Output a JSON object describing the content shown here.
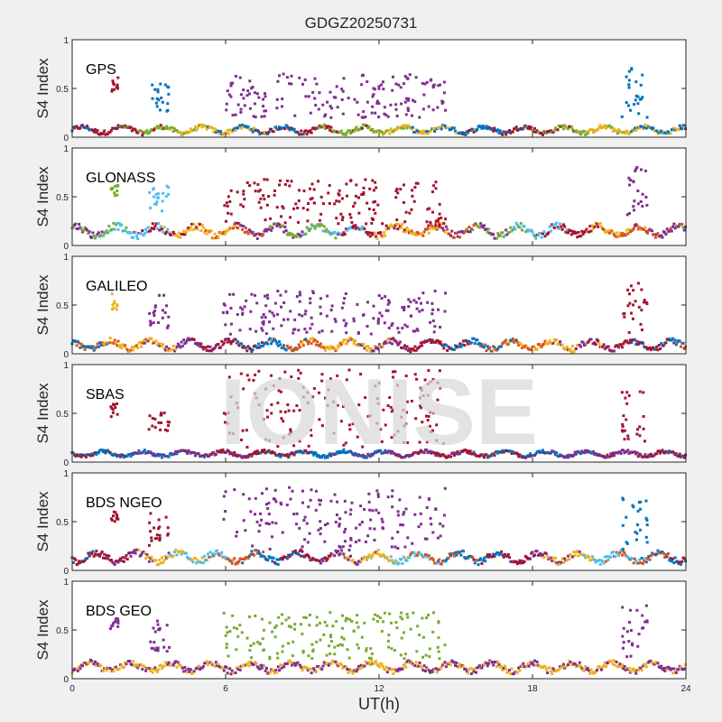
{
  "chart_data": {
    "type": "scatter",
    "title": "GDGZ20250731",
    "xlabel": "UT(h)",
    "ylabel": "S4 Index",
    "xlim": [
      0,
      24
    ],
    "ylim": [
      0,
      1
    ],
    "xticks": [
      0,
      6,
      12,
      18,
      24
    ],
    "xtick_labels": [
      "0",
      "6",
      "12",
      "18",
      "24"
    ],
    "yticks": [
      0,
      0.5,
      1
    ],
    "ytick_labels": [
      "0",
      "0.5",
      "1"
    ],
    "grid": false,
    "legend": "none",
    "watermark": "IONISE",
    "data_note": "Individual points are not transcribed; the image provides no readable values. Panel descriptions below are qualitative, with approximate UT-hour windows and S4 ranges estimated by eye.",
    "colors": [
      "#0072bd",
      "#d95319",
      "#edb120",
      "#7e2f8e",
      "#77ac30",
      "#4dbeee",
      "#a2142f"
    ],
    "panels": [
      {
        "label": "GPS",
        "background_approx": {
          "s4_range": [
            0.03,
            0.12
          ],
          "dominant_colors": [
            "#0072bd",
            "#a2142f",
            "#77ac30",
            "#edb120"
          ]
        },
        "activity_approx": [
          {
            "ut_range": [
              1.5,
              1.8
            ],
            "s4_range": [
              0.45,
              0.62
            ],
            "color": "#a2142f"
          },
          {
            "ut_range": [
              3.0,
              3.8
            ],
            "s4_range": [
              0.25,
              0.58
            ],
            "color": "#0072bd"
          },
          {
            "ut_range": [
              5.9,
              14.6
            ],
            "s4_range": [
              0.2,
              0.65
            ],
            "color": "#7e2f8e"
          },
          {
            "ut_range": [
              21.5,
              22.5
            ],
            "s4_range": [
              0.2,
              0.75
            ],
            "color": "#0072bd"
          }
        ]
      },
      {
        "label": "GLONASS",
        "background_approx": {
          "s4_range": [
            0.08,
            0.22
          ],
          "dominant_colors": [
            "#7e2f8e",
            "#77ac30",
            "#4dbeee",
            "#a2142f",
            "#edb120",
            "#d95319"
          ]
        },
        "activity_approx": [
          {
            "ut_range": [
              1.5,
              1.8
            ],
            "s4_range": [
              0.5,
              0.62
            ],
            "color": "#77ac30"
          },
          {
            "ut_range": [
              3.0,
              3.8
            ],
            "s4_range": [
              0.35,
              0.62
            ],
            "color": "#4dbeee"
          },
          {
            "ut_range": [
              5.9,
              14.6
            ],
            "s4_range": [
              0.2,
              0.68
            ],
            "color": "#a2142f"
          },
          {
            "ut_range": [
              21.5,
              22.5
            ],
            "s4_range": [
              0.2,
              0.82
            ],
            "color": "#7e2f8e"
          }
        ]
      },
      {
        "label": "GALILEO",
        "background_approx": {
          "s4_range": [
            0.03,
            0.15
          ],
          "dominant_colors": [
            "#0072bd",
            "#d95319",
            "#edb120",
            "#7e2f8e",
            "#a2142f"
          ]
        },
        "activity_approx": [
          {
            "ut_range": [
              1.5,
              1.8
            ],
            "s4_range": [
              0.45,
              0.62
            ],
            "color": "#edb120"
          },
          {
            "ut_range": [
              3.0,
              3.8
            ],
            "s4_range": [
              0.25,
              0.6
            ],
            "color": "#7e2f8e"
          },
          {
            "ut_range": [
              5.9,
              14.6
            ],
            "s4_range": [
              0.2,
              0.65
            ],
            "color": "#7e2f8e"
          },
          {
            "ut_range": [
              21.5,
              22.5
            ],
            "s4_range": [
              0.2,
              0.75
            ],
            "color": "#a2142f"
          }
        ]
      },
      {
        "label": "SBAS",
        "background_approx": {
          "s4_range": [
            0.05,
            0.12
          ],
          "dominant_colors": [
            "#a2142f",
            "#0072bd",
            "#7e2f8e"
          ]
        },
        "activity_approx": [
          {
            "ut_range": [
              1.5,
              1.8
            ],
            "s4_range": [
              0.45,
              0.6
            ],
            "color": "#a2142f"
          },
          {
            "ut_range": [
              3.0,
              3.8
            ],
            "s4_range": [
              0.25,
              0.58
            ],
            "color": "#a2142f"
          },
          {
            "ut_range": [
              5.9,
              14.6
            ],
            "s4_range": [
              0.15,
              0.95
            ],
            "color": "#a2142f"
          },
          {
            "ut_range": [
              21.5,
              22.5
            ],
            "s4_range": [
              0.2,
              0.75
            ],
            "color": "#a2142f"
          }
        ]
      },
      {
        "label": "BDS NGEO",
        "background_approx": {
          "s4_range": [
            0.07,
            0.2
          ],
          "dominant_colors": [
            "#0072bd",
            "#a2142f",
            "#7e2f8e",
            "#edb120",
            "#4dbeee",
            "#d95319"
          ]
        },
        "activity_approx": [
          {
            "ut_range": [
              1.5,
              1.8
            ],
            "s4_range": [
              0.5,
              0.62
            ],
            "color": "#a2142f"
          },
          {
            "ut_range": [
              3.0,
              3.8
            ],
            "s4_range": [
              0.25,
              0.6
            ],
            "color": "#a2142f"
          },
          {
            "ut_range": [
              5.9,
              14.6
            ],
            "s4_range": [
              0.2,
              0.85
            ],
            "color": "#7e2f8e"
          },
          {
            "ut_range": [
              21.5,
              22.5
            ],
            "s4_range": [
              0.2,
              0.8
            ],
            "color": "#0072bd"
          }
        ]
      },
      {
        "label": "BDS GEO",
        "background_approx": {
          "s4_range": [
            0.06,
            0.18
          ],
          "dominant_colors": [
            "#7e2f8e",
            "#edb120"
          ]
        },
        "activity_approx": [
          {
            "ut_range": [
              1.5,
              1.8
            ],
            "s4_range": [
              0.5,
              0.62
            ],
            "color": "#7e2f8e"
          },
          {
            "ut_range": [
              3.0,
              3.8
            ],
            "s4_range": [
              0.25,
              0.6
            ],
            "color": "#7e2f8e"
          },
          {
            "ut_range": [
              5.9,
              14.6
            ],
            "s4_range": [
              0.2,
              0.68
            ],
            "color": "#77ac30"
          },
          {
            "ut_range": [
              21.5,
              22.5
            ],
            "s4_range": [
              0.2,
              0.8
            ],
            "color": "#7e2f8e"
          }
        ]
      }
    ]
  }
}
